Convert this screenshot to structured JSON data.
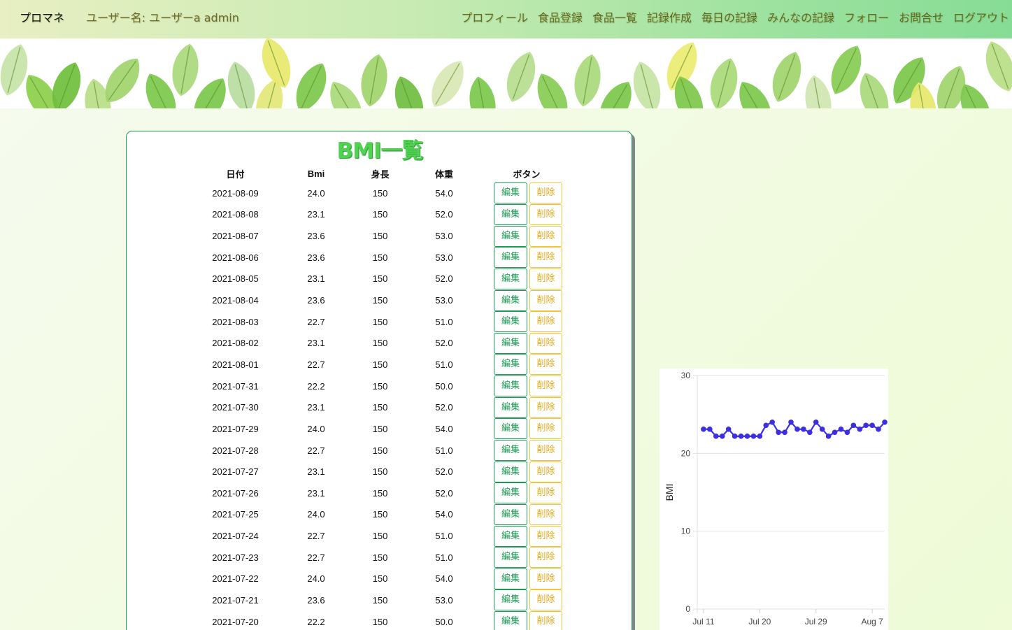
{
  "nav": {
    "brand": "プロマネ",
    "username_label": "ユーザー名: ",
    "username_value": "ユーザーa admin",
    "links": [
      "プロフィール",
      "食品登録",
      "食品一覧",
      "記録作成",
      "毎日の記録",
      "みんなの記録",
      "フォロー",
      "お問合せ",
      "ログアウト"
    ]
  },
  "page": {
    "title": "BMI一覧"
  },
  "table": {
    "headers": [
      "日付",
      "Bmi",
      "身長",
      "体重",
      "ボタン"
    ],
    "edit_label": "編集",
    "delete_label": "削除",
    "rows": [
      [
        "2021-08-09",
        "24.0",
        "150",
        "54.0"
      ],
      [
        "2021-08-08",
        "23.1",
        "150",
        "52.0"
      ],
      [
        "2021-08-07",
        "23.6",
        "150",
        "53.0"
      ],
      [
        "2021-08-06",
        "23.6",
        "150",
        "53.0"
      ],
      [
        "2021-08-05",
        "23.1",
        "150",
        "52.0"
      ],
      [
        "2021-08-04",
        "23.6",
        "150",
        "53.0"
      ],
      [
        "2021-08-03",
        "22.7",
        "150",
        "51.0"
      ],
      [
        "2021-08-02",
        "23.1",
        "150",
        "52.0"
      ],
      [
        "2021-08-01",
        "22.7",
        "150",
        "51.0"
      ],
      [
        "2021-07-31",
        "22.2",
        "150",
        "50.0"
      ],
      [
        "2021-07-30",
        "23.1",
        "150",
        "52.0"
      ],
      [
        "2021-07-29",
        "24.0",
        "150",
        "54.0"
      ],
      [
        "2021-07-28",
        "22.7",
        "150",
        "51.0"
      ],
      [
        "2021-07-27",
        "23.1",
        "150",
        "52.0"
      ],
      [
        "2021-07-26",
        "23.1",
        "150",
        "52.0"
      ],
      [
        "2021-07-25",
        "24.0",
        "150",
        "54.0"
      ],
      [
        "2021-07-24",
        "22.7",
        "150",
        "51.0"
      ],
      [
        "2021-07-23",
        "22.7",
        "150",
        "51.0"
      ],
      [
        "2021-07-22",
        "24.0",
        "150",
        "54.0"
      ],
      [
        "2021-07-21",
        "23.6",
        "150",
        "53.0"
      ],
      [
        "2021-07-20",
        "22.2",
        "150",
        "50.0"
      ]
    ]
  },
  "chart_data": {
    "type": "line",
    "ylabel": "BMI",
    "xlabel": "",
    "ylim": [
      0,
      30
    ],
    "y_ticks": [
      "0",
      "10",
      "20",
      "30"
    ],
    "x_ticks": [
      {
        "date": "2021-07-11",
        "label": "Jul 11"
      },
      {
        "date": "2021-07-20",
        "label": "Jul 20"
      },
      {
        "date": "2021-07-29",
        "label": "Jul 29"
      },
      {
        "date": "2021-08-07",
        "label": "Aug 7"
      }
    ],
    "xlim": [
      "2021-07-10",
      "2021-08-09"
    ],
    "grid": true,
    "color": "#3b2fe0",
    "points": [
      {
        "x": "2021-07-11",
        "y": 23.1
      },
      {
        "x": "2021-07-12",
        "y": 23.1
      },
      {
        "x": "2021-07-13",
        "y": 22.2
      },
      {
        "x": "2021-07-14",
        "y": 22.2
      },
      {
        "x": "2021-07-15",
        "y": 23.1
      },
      {
        "x": "2021-07-16",
        "y": 22.2
      },
      {
        "x": "2021-07-17",
        "y": 22.2
      },
      {
        "x": "2021-07-18",
        "y": 22.2
      },
      {
        "x": "2021-07-19",
        "y": 22.2
      },
      {
        "x": "2021-07-20",
        "y": 22.2
      },
      {
        "x": "2021-07-21",
        "y": 23.6
      },
      {
        "x": "2021-07-22",
        "y": 24.0
      },
      {
        "x": "2021-07-23",
        "y": 22.7
      },
      {
        "x": "2021-07-24",
        "y": 22.7
      },
      {
        "x": "2021-07-25",
        "y": 24.0
      },
      {
        "x": "2021-07-26",
        "y": 23.1
      },
      {
        "x": "2021-07-27",
        "y": 23.1
      },
      {
        "x": "2021-07-28",
        "y": 22.7
      },
      {
        "x": "2021-07-29",
        "y": 24.0
      },
      {
        "x": "2021-07-30",
        "y": 23.1
      },
      {
        "x": "2021-07-31",
        "y": 22.2
      },
      {
        "x": "2021-08-01",
        "y": 22.7
      },
      {
        "x": "2021-08-02",
        "y": 23.1
      },
      {
        "x": "2021-08-03",
        "y": 22.7
      },
      {
        "x": "2021-08-04",
        "y": 23.6
      },
      {
        "x": "2021-08-05",
        "y": 23.1
      },
      {
        "x": "2021-08-06",
        "y": 23.6
      },
      {
        "x": "2021-08-07",
        "y": 23.6
      },
      {
        "x": "2021-08-08",
        "y": 23.1
      },
      {
        "x": "2021-08-09",
        "y": 24.0
      }
    ]
  },
  "colors": {
    "accent_green": "#1b9a52",
    "title_green": "#4fd34f",
    "delete_yellow": "#e4a91b"
  }
}
